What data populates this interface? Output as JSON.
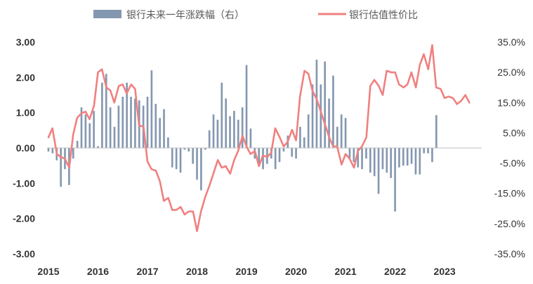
{
  "colors": {
    "bar": "#8497B0",
    "line": "#F08080",
    "axis": "#BFBFBF",
    "text": "#333333",
    "legend_text": "#595959"
  },
  "chart_data": {
    "type": "bar+line",
    "title": "",
    "legend": {
      "placement": "top",
      "entries": [
        {
          "name": "银行未来一年涨跌幅（右）",
          "kind": "bar"
        },
        {
          "name": "银行估值性价比",
          "kind": "line"
        }
      ]
    },
    "x_axis": {
      "labels": [
        "2015",
        "2016",
        "2017",
        "2018",
        "2019",
        "2020",
        "2021",
        "2022",
        "2023"
      ],
      "start": 2015.0,
      "end": 2023.75
    },
    "y_left": {
      "min": -3,
      "max": 3,
      "ticks": [
        "-3.00",
        "-2.00",
        "-1.00",
        "0.00",
        "1.00",
        "2.00",
        "3.00"
      ]
    },
    "y_right": {
      "min": -35,
      "max": 35,
      "ticks": [
        "-35.0%",
        "-25.0%",
        "-15.0%",
        "-5.0%",
        "5.0%",
        "15.0%",
        "25.0%",
        "35.0%"
      ]
    },
    "bar_series": {
      "name": "银行未来一年涨跌幅（右）",
      "axis": "left",
      "start": 2015.0,
      "step": 0.08333,
      "values": [
        -0.1,
        -0.15,
        -0.35,
        -1.1,
        -0.6,
        -1.05,
        -0.3,
        0.2,
        1.15,
        0.95,
        0.7,
        1.05,
        0.05,
        1.85,
        2.1,
        1.15,
        0.6,
        1.2,
        1.45,
        1.85,
        1.45,
        1.4,
        1.35,
        1.2,
        1.45,
        2.2,
        1.25,
        0.85,
        1.1,
        0.3,
        -0.55,
        -0.6,
        -0.7,
        -0.05,
        -0.1,
        -0.45,
        -0.9,
        -1.2,
        -0.05,
        0.5,
        0.95,
        0.8,
        1.85,
        1.4,
        0.9,
        1.05,
        0.8,
        1.15,
        2.35,
        0.55,
        -0.3,
        -0.5,
        -0.6,
        -0.45,
        -0.3,
        -0.6,
        -0.4,
        -0.1,
        0.35,
        -0.25,
        -0.3,
        0.6,
        0.3,
        0.95,
        1.8,
        2.5,
        1.8,
        2.45,
        1.4,
        2.05,
        0.6,
        0.95,
        0.85,
        -0.3,
        -0.4,
        -0.55,
        -0.6,
        -0.3,
        -0.7,
        -0.8,
        -1.3,
        -0.6,
        -0.7,
        -0.85,
        -1.8,
        -0.55,
        -0.5,
        -0.5,
        -0.45,
        -0.75,
        -0.75,
        -0.15,
        -0.15,
        -0.4,
        0.93
      ]
    },
    "line_series": {
      "name": "银行估值性价比",
      "axis": "right",
      "x": [
        2015.0,
        2015.08,
        2015.17,
        2015.25,
        2015.33,
        2015.42,
        2015.5,
        2015.58,
        2015.67,
        2015.75,
        2015.83,
        2015.92,
        2016.0,
        2016.08,
        2016.17,
        2016.25,
        2016.33,
        2016.42,
        2016.5,
        2016.58,
        2016.67,
        2016.75,
        2016.83,
        2016.92,
        2017.0,
        2017.08,
        2017.17,
        2017.25,
        2017.33,
        2017.42,
        2017.5,
        2017.58,
        2017.67,
        2017.75,
        2017.83,
        2017.92,
        2018.0,
        2018.08,
        2018.17,
        2018.25,
        2018.33,
        2018.42,
        2018.5,
        2018.58,
        2018.67,
        2018.75,
        2018.83,
        2018.92,
        2019.0,
        2019.08,
        2019.17,
        2019.25,
        2019.33,
        2019.42,
        2019.5,
        2019.58,
        2019.67,
        2019.75,
        2019.83,
        2019.92,
        2020.0,
        2020.08,
        2020.17,
        2020.25,
        2020.33,
        2020.42,
        2020.5,
        2020.58,
        2020.67,
        2020.75,
        2020.83,
        2020.92,
        2021.0,
        2021.08,
        2021.17,
        2021.25,
        2021.33,
        2021.42,
        2021.5,
        2021.58,
        2021.67,
        2021.75,
        2021.83,
        2021.92,
        2022.0,
        2022.08,
        2022.17,
        2022.25,
        2022.33,
        2022.42,
        2022.5,
        2022.58,
        2022.67,
        2022.75,
        2022.83,
        2022.92,
        2023.0,
        2023.08,
        2023.17,
        2023.25,
        2023.33,
        2023.42,
        2023.5
      ],
      "values": [
        3.5,
        6.5,
        -2.0,
        -3.0,
        -3.5,
        -6.5,
        4.5,
        10.0,
        11.5,
        12.0,
        9.5,
        14.0,
        25.0,
        26.0,
        20.0,
        19.0,
        15.0,
        20.5,
        21.0,
        18.0,
        21.0,
        19.5,
        7.5,
        7.0,
        -4.5,
        -7.0,
        -7.5,
        -11.0,
        -17.5,
        -16.5,
        -20.5,
        -20.5,
        -19.5,
        -22.0,
        -21.0,
        -21.0,
        -27.5,
        -21.0,
        -16.0,
        -12.5,
        -8.5,
        -4.0,
        -6.5,
        -6.0,
        -8.5,
        -4.0,
        -1.0,
        4.0,
        0.5,
        -2.0,
        -1.0,
        -6.0,
        -2.5,
        -3.0,
        -1.5,
        6.5,
        3.5,
        0.5,
        2.0,
        6.0,
        2.5,
        17.0,
        25.5,
        24.5,
        19.0,
        16.0,
        12.0,
        8.0,
        3.5,
        0.5,
        0.5,
        -5.5,
        -2.0,
        -3.5,
        -6.5,
        -1.0,
        0.5,
        3.5,
        20.5,
        22.5,
        20.5,
        17.5,
        25.5,
        25.0,
        25.0,
        21.0,
        20.0,
        21.0,
        25.0,
        20.0,
        27.5,
        31.0,
        26.0,
        34.0,
        20.0,
        19.5,
        16.5,
        17.0,
        16.5,
        14.5,
        15.5,
        17.5,
        15.0
      ]
    }
  }
}
